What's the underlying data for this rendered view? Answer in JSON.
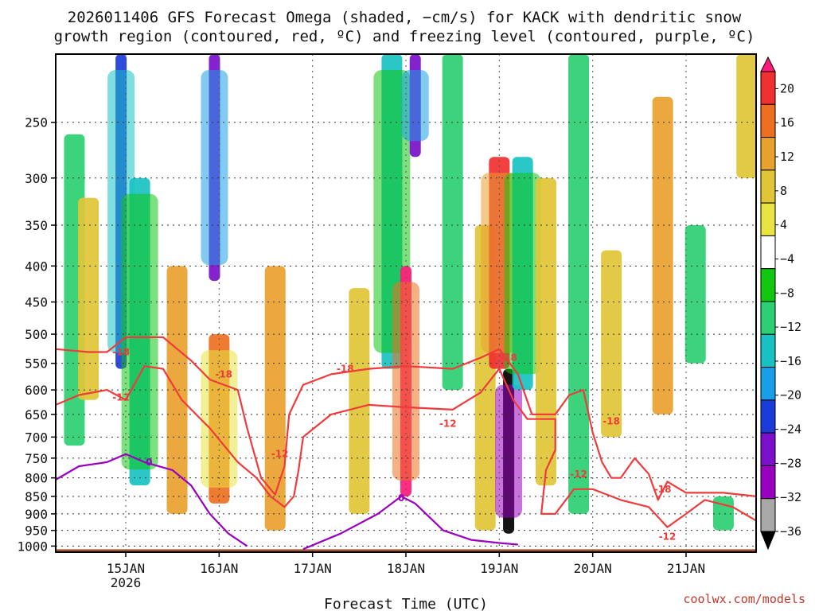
{
  "chart_data": {
    "type": "heatmap",
    "title_lines": [
      "2026011406 GFS Forecast Omega (shaded, −cm/s) for KACK with dendritic snow",
      "growth region (contoured, red, ºC) and freezing level (contoured, purple, ºC)"
    ],
    "xlabel": "Forecast Time (UTC)",
    "ylabel": "",
    "credit": "coolwx.com/models",
    "x_ticks": [
      {
        "label": "15JAN",
        "sub": "2026",
        "day": 15
      },
      {
        "label": "16JAN",
        "sub": "",
        "day": 16
      },
      {
        "label": "17JAN",
        "sub": "",
        "day": 17
      },
      {
        "label": "18JAN",
        "sub": "",
        "day": 18
      },
      {
        "label": "19JAN",
        "sub": "",
        "day": 19
      },
      {
        "label": "20JAN",
        "sub": "",
        "day": 20
      },
      {
        "label": "21JAN",
        "sub": "",
        "day": 21
      }
    ],
    "xlim_days": [
      14.25,
      21.75
    ],
    "y_ticks": [
      250,
      300,
      350,
      400,
      450,
      500,
      550,
      600,
      650,
      700,
      750,
      800,
      850,
      900,
      950,
      1000
    ],
    "ylim_hpa": [
      200,
      1020
    ],
    "colorbar": {
      "labels": [
        "20",
        "16",
        "12",
        "8",
        "4",
        "−4",
        "−8",
        "−12",
        "−16",
        "−20",
        "−24",
        "−28",
        "−32",
        "−36"
      ],
      "colors": [
        "#ff1a7a",
        "#ef3030",
        "#ee6f1f",
        "#e8a12e",
        "#e0c637",
        "#e8e442",
        "#ffffff",
        "#11c711",
        "#2dcf72",
        "#19c2c2",
        "#1a9ee8",
        "#1c3cd9",
        "#7a10c9",
        "#9a00c0",
        "#a8a8a8",
        "#000000"
      ]
    },
    "omega_bands": [
      {
        "day": 14.45,
        "p_top": 260,
        "p_bot": 720,
        "value": -10
      },
      {
        "day": 14.6,
        "p_top": 320,
        "p_bot": 620,
        "value": 6
      },
      {
        "day": 14.95,
        "p_top": 150,
        "p_bot": 560,
        "value": -22
      },
      {
        "day": 15.15,
        "p_top": 300,
        "p_bot": 820,
        "value": -14
      },
      {
        "day": 15.55,
        "p_top": 400,
        "p_bot": 900,
        "value": 8
      },
      {
        "day": 15.95,
        "p_top": 170,
        "p_bot": 420,
        "value": -24
      },
      {
        "day": 16.0,
        "p_top": 500,
        "p_bot": 870,
        "value": 12
      },
      {
        "day": 16.6,
        "p_top": 400,
        "p_bot": 950,
        "value": 8
      },
      {
        "day": 17.5,
        "p_top": 430,
        "p_bot": 900,
        "value": 6
      },
      {
        "day": 17.85,
        "p_top": 180,
        "p_bot": 560,
        "value": -12
      },
      {
        "day": 18.0,
        "p_top": 400,
        "p_bot": 850,
        "value": 20
      },
      {
        "day": 18.1,
        "p_top": 180,
        "p_bot": 280,
        "value": -24
      },
      {
        "day": 18.5,
        "p_top": 200,
        "p_bot": 600,
        "value": -10
      },
      {
        "day": 18.85,
        "p_top": 350,
        "p_bot": 950,
        "value": 6
      },
      {
        "day": 19.0,
        "p_top": 280,
        "p_bot": 560,
        "value": 16
      },
      {
        "day": 19.1,
        "p_top": 560,
        "p_bot": 960,
        "value": -36
      },
      {
        "day": 19.25,
        "p_top": 280,
        "p_bot": 600,
        "value": -14
      },
      {
        "day": 19.5,
        "p_top": 300,
        "p_bot": 820,
        "value": 6
      },
      {
        "day": 19.85,
        "p_top": 200,
        "p_bot": 900,
        "value": -10
      },
      {
        "day": 20.2,
        "p_top": 380,
        "p_bot": 700,
        "value": 6
      },
      {
        "day": 20.75,
        "p_top": 230,
        "p_bot": 650,
        "value": 8
      },
      {
        "day": 21.1,
        "p_top": 350,
        "p_bot": 550,
        "value": -10
      },
      {
        "day": 21.4,
        "p_top": 850,
        "p_bot": 950,
        "value": -10
      },
      {
        "day": 21.65,
        "p_top": 200,
        "p_bot": 300,
        "value": 6
      }
    ],
    "contour_labels": [
      {
        "text": "-18",
        "color": "#ef3b3b",
        "day": 14.95,
        "p": 530
      },
      {
        "text": "-12",
        "color": "#ef3b3b",
        "day": 14.95,
        "p": 615
      },
      {
        "text": "-18",
        "color": "#ef3b3b",
        "day": 16.05,
        "p": 570
      },
      {
        "text": "-12",
        "color": "#ef3b3b",
        "day": 16.65,
        "p": 740
      },
      {
        "text": "-18",
        "color": "#ef3b3b",
        "day": 17.35,
        "p": 560
      },
      {
        "text": "-12",
        "color": "#ef3b3b",
        "day": 18.45,
        "p": 670
      },
      {
        "text": "-18",
        "color": "#ef3b3b",
        "day": 19.1,
        "p": 540
      },
      {
        "text": "-18",
        "color": "#ef3b3b",
        "day": 20.2,
        "p": 665
      },
      {
        "text": "-12",
        "color": "#ef3b3b",
        "day": 19.85,
        "p": 790
      },
      {
        "text": "-18",
        "color": "#ef3b3b",
        "day": 20.75,
        "p": 830
      },
      {
        "text": "-12",
        "color": "#ef3b3b",
        "day": 20.8,
        "p": 970
      },
      {
        "text": "0",
        "color": "#9a00c0",
        "day": 15.25,
        "p": 760
      },
      {
        "text": "0",
        "color": "#9a00c0",
        "day": 17.95,
        "p": 855
      }
    ]
  }
}
